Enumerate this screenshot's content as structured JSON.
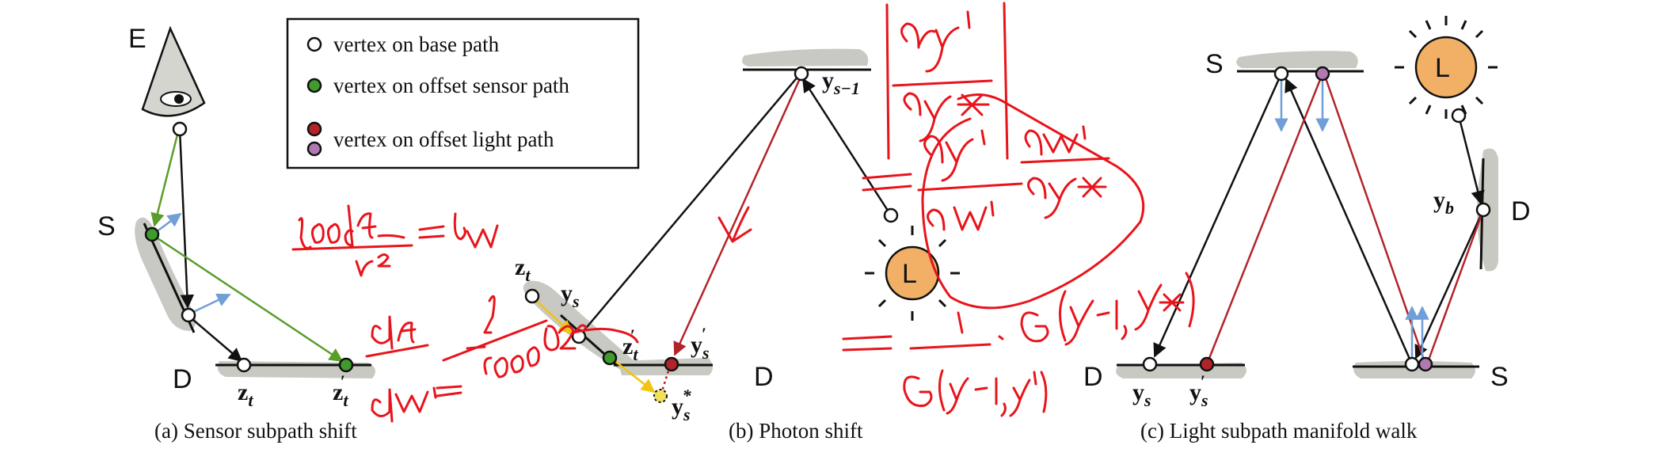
{
  "legend": {
    "items": [
      {
        "label": "vertex on base path",
        "color": "#ffffff"
      },
      {
        "label": "vertex on offset sensor path",
        "color": "#3f9b2c"
      },
      {
        "label": "vertex on offset light path",
        "color": "#b3242a",
        "color2": "#b07ab0"
      }
    ]
  },
  "colors": {
    "base_vertex": "#ffffff",
    "sensor_vertex": "#3f9b2c",
    "light_vertex": "#b3242a",
    "light_vertex_alt": "#b07ab0",
    "light_fill": "#f2b066",
    "surface": "#c9c9c4",
    "arrow_blue": "#6f9fd6",
    "arrow_green": "#5a9e2a",
    "arrow_red": "#b3242a",
    "arrow_yellow": "#f1c40f",
    "handwriting": "#e8141b"
  },
  "panel_a": {
    "caption": "(a) Sensor subpath shift",
    "label_E": "E",
    "label_S": "S",
    "label_D": "D",
    "label_zt": "z",
    "label_zt_sub": "t",
    "label_zt2": "z",
    "label_zt2_sub": "t",
    "label_zt2_prime": "′"
  },
  "panel_b": {
    "caption": "(b) Photon shift",
    "label_ys1": "y",
    "label_ys1_sub": "s−1",
    "label_zt": "z",
    "label_zt_sub": "t",
    "label_ys": "y",
    "label_ys_sub": "s",
    "label_zt2": "z",
    "label_zt2_sub": "t",
    "label_ys2": "y",
    "label_ys2_sub": "s",
    "label_ystar": "y",
    "label_ystar_sub": "s",
    "label_star": "*",
    "label_D": "D",
    "label_L": "L"
  },
  "panel_c": {
    "caption": "(c) Light subpath manifold walk",
    "label_S_top": "S",
    "label_L": "L",
    "label_yb": "y",
    "label_yb_sub": "b",
    "label_D_right": "D",
    "label_D_left": "D",
    "label_S_bottom": "S",
    "label_ys": "y",
    "label_ys_sub": "s",
    "label_ys2": "y",
    "label_ys2_sub": "s"
  }
}
